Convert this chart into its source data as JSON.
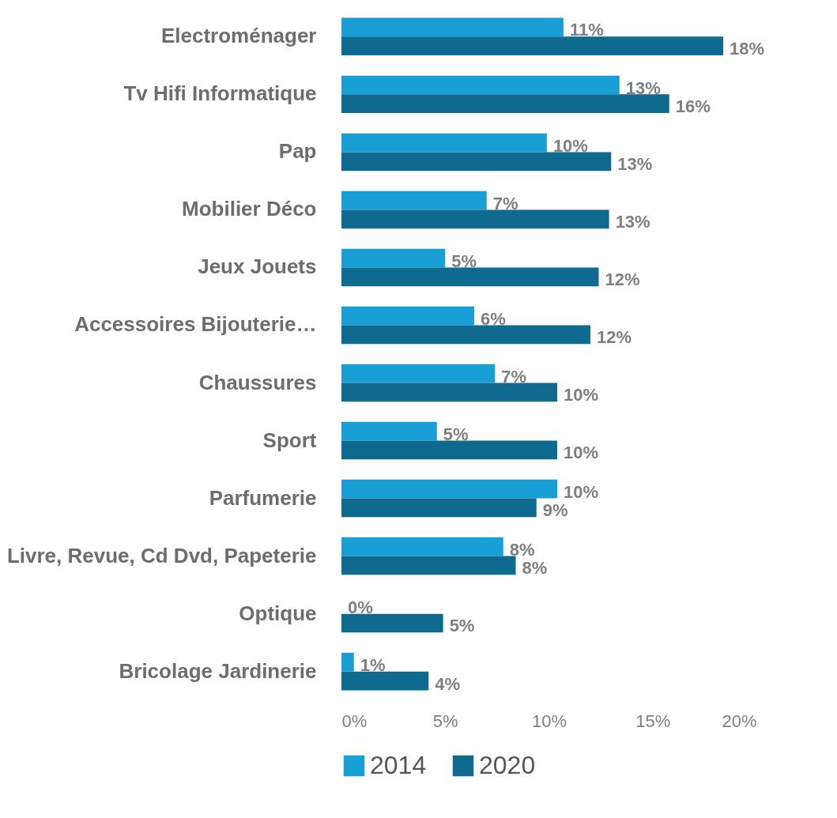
{
  "chart_data": {
    "type": "bar",
    "orientation": "horizontal",
    "categories": [
      "Electroménager",
      "Tv Hifi Informatique",
      "Pap",
      "Mobilier Déco",
      "Jeux Jouets",
      "Accessoires Bijouterie…",
      "Chaussures",
      "Sport",
      "Parfumerie",
      "Livre, Revue, Cd Dvd, Papeterie",
      "Optique",
      "Bricolage Jardinerie"
    ],
    "series": [
      {
        "name": "2014",
        "color": "#179fd6",
        "values": [
          10.7,
          13.4,
          9.9,
          7.0,
          5.0,
          6.4,
          7.4,
          4.6,
          10.4,
          7.8,
          0,
          0.6
        ],
        "value_labels": [
          "11%",
          "13%",
          "10%",
          "7%",
          "5%",
          "6%",
          "7%",
          "5%",
          "10%",
          "8%",
          "0%",
          "1%"
        ]
      },
      {
        "name": "2020",
        "color": "#0e6a8e",
        "values": [
          18.4,
          15.8,
          13.0,
          12.9,
          12.4,
          12.0,
          10.4,
          10.4,
          9.4,
          8.4,
          4.9,
          4.2
        ],
        "value_labels": [
          "18%",
          "16%",
          "13%",
          "13%",
          "12%",
          "12%",
          "10%",
          "10%",
          "9%",
          "8%",
          "5%",
          "4%"
        ]
      }
    ],
    "xlim": [
      0,
      20
    ],
    "xticks": [
      {
        "value": 0,
        "label": "0%"
      },
      {
        "value": 5,
        "label": "5%"
      },
      {
        "value": 10,
        "label": "10%"
      },
      {
        "value": 15,
        "label": "15%"
      },
      {
        "value": 20,
        "label": "20%"
      }
    ],
    "grid": false,
    "legend": "bottom"
  }
}
